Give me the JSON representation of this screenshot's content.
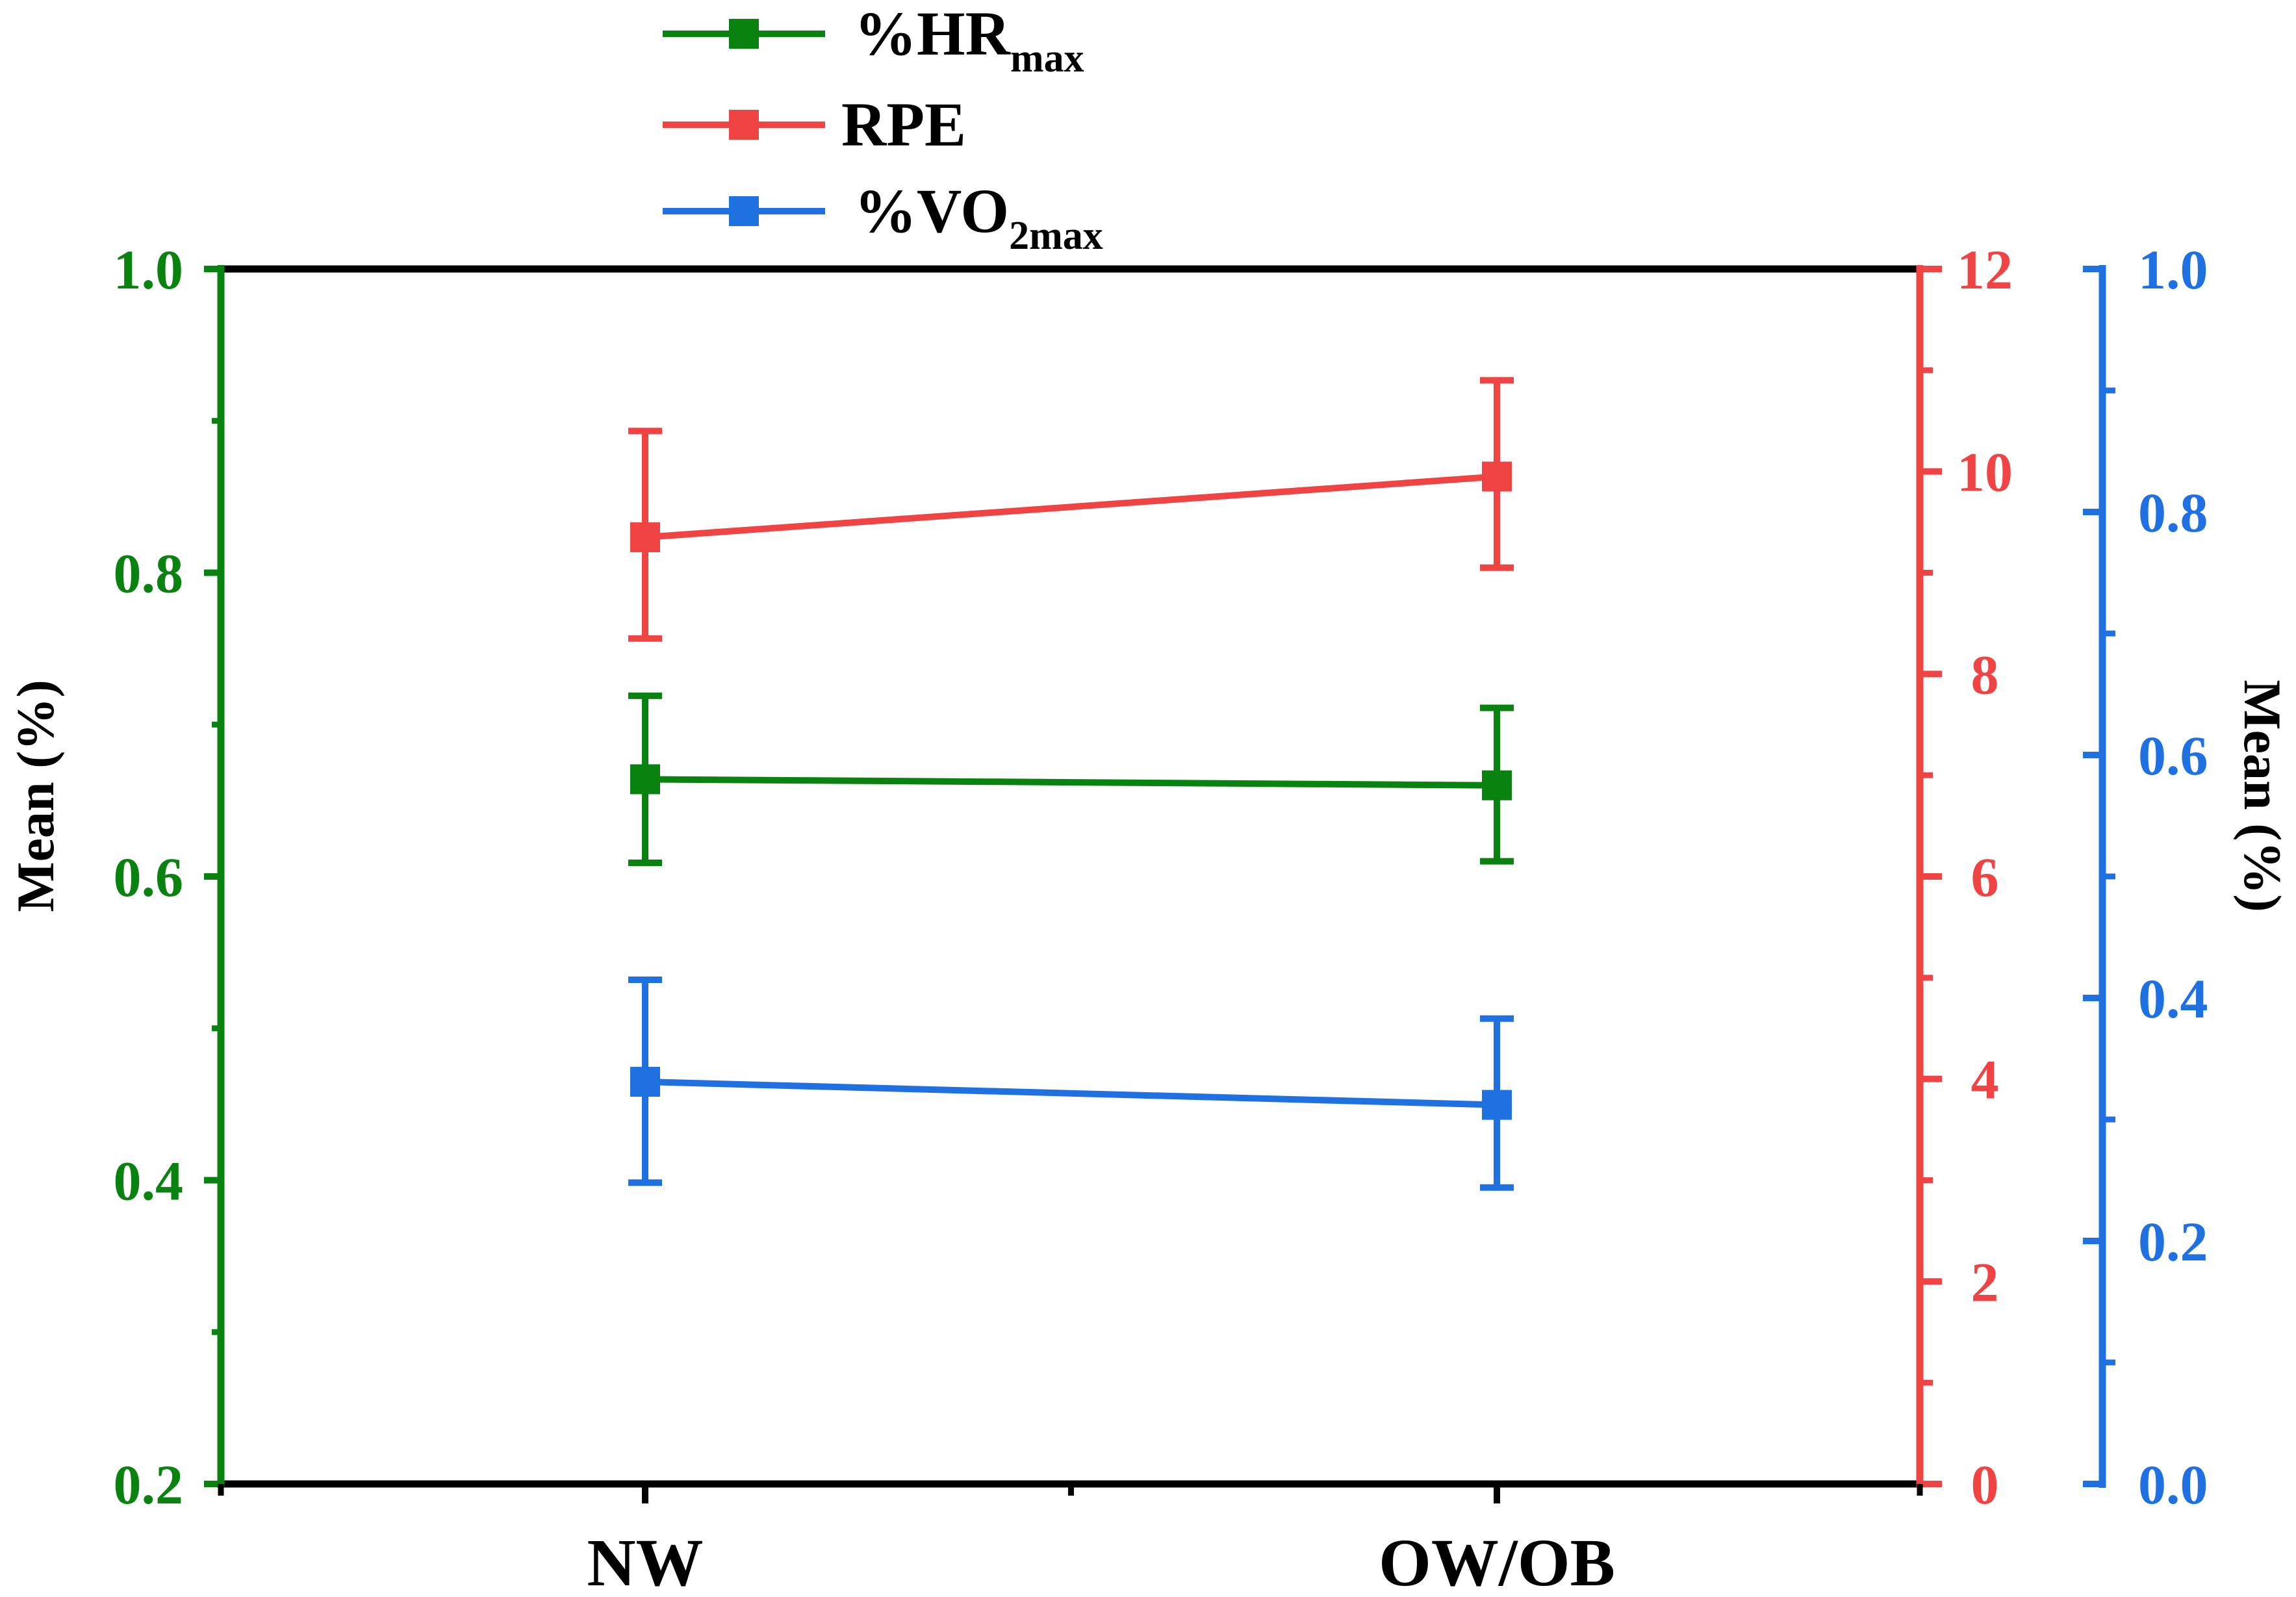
{
  "chart_data": {
    "type": "line",
    "categories": [
      "NW",
      "OW/OB"
    ],
    "series": [
      {
        "name": "%HR",
        "subscript": "max",
        "axis": "left",
        "color": "#0a8210",
        "values": [
          0.664,
          0.66
        ],
        "err_low": [
          0.609,
          0.61
        ],
        "err_high": [
          0.719,
          0.711
        ]
      },
      {
        "name": "RPE",
        "subscript": "",
        "axis": "right1",
        "color": "#f04444",
        "values": [
          9.35,
          9.95
        ],
        "err_low": [
          8.35,
          9.05
        ],
        "err_high": [
          10.4,
          10.9
        ]
      },
      {
        "name": "%VO",
        "subscript": "2max",
        "axis": "right2",
        "color": "#1f70e0",
        "values": [
          0.331,
          0.312
        ],
        "err_low": [
          0.248,
          0.244
        ],
        "err_high": [
          0.415,
          0.383
        ]
      }
    ],
    "axes": {
      "left": {
        "label": "Mean (%)",
        "ylim": [
          0.2,
          1.0
        ],
        "ticks": [
          "0.2",
          "0.4",
          "0.6",
          "0.8",
          "1.0"
        ],
        "color": "#0a8210"
      },
      "right1": {
        "label": "",
        "ylim": [
          0,
          12
        ],
        "ticks": [
          "0",
          "2",
          "4",
          "6",
          "8",
          "10",
          "12"
        ],
        "color": "#f04444"
      },
      "right2": {
        "label": "Mean (%)",
        "ylim": [
          0.0,
          1.0
        ],
        "ticks": [
          "0.0",
          "0.2",
          "0.4",
          "0.6",
          "0.8",
          "1.0"
        ],
        "color": "#1f70e0"
      }
    },
    "xlabel": "",
    "title": "",
    "legend_position": "top-center"
  }
}
